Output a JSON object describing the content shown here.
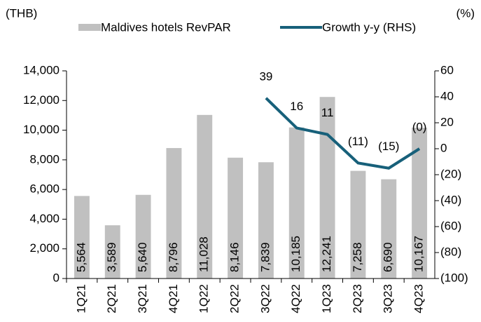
{
  "chart_data": {
    "type": "bar_line",
    "ylabel": "(THB)",
    "y2label": "(%)",
    "categories": [
      "1Q21",
      "2Q21",
      "3Q21",
      "4Q21",
      "1Q22",
      "2Q22",
      "3Q22",
      "4Q22",
      "1Q23",
      "2Q23",
      "3Q23",
      "4Q23"
    ],
    "series": [
      {
        "name": "Maldives hotels RevPAR",
        "type": "bar",
        "color": "#c0c0c0",
        "values": [
          5564,
          3589,
          5640,
          8796,
          11028,
          8146,
          7839,
          10185,
          12241,
          7258,
          6690,
          10167
        ],
        "value_labels": [
          "5,564",
          "3,589",
          "5,640",
          "8,796",
          "11,028",
          "8,146",
          "7,839",
          "10,185",
          "12,241",
          "7,258",
          "6,690",
          "10,167"
        ]
      },
      {
        "name": "Growth y-y (RHS)",
        "type": "line",
        "axis": "y2",
        "color": "#17607a",
        "values": [
          null,
          null,
          null,
          null,
          null,
          null,
          39,
          16,
          11,
          -11,
          -15,
          0
        ],
        "value_labels": [
          null,
          null,
          null,
          null,
          null,
          null,
          "39",
          "16",
          "11",
          "(11)",
          "(15)",
          "(0)"
        ]
      }
    ],
    "ylim": [
      0,
      14000
    ],
    "yticks": [
      0,
      {
        "value": 2000,
        "label": "2,000"
      },
      {
        "value": 4000,
        "label": "4,000"
      },
      {
        "value": 6000,
        "label": "6,000"
      },
      {
        "value": 8000,
        "label": "8,000"
      },
      {
        "value": 10000,
        "label": "10,000"
      },
      {
        "value": 12000,
        "label": "12,000"
      },
      {
        "value": 14000,
        "label": "14,000"
      }
    ],
    "y2lim": [
      -100,
      60
    ],
    "y2ticks": [
      {
        "value": -100,
        "label": "(100)"
      },
      {
        "value": -80,
        "label": "(80)"
      },
      {
        "value": -60,
        "label": "(60)"
      },
      {
        "value": -40,
        "label": "(40)"
      },
      {
        "value": -20,
        "label": "(20)"
      },
      0,
      20,
      40,
      60
    ],
    "legend": "top"
  }
}
